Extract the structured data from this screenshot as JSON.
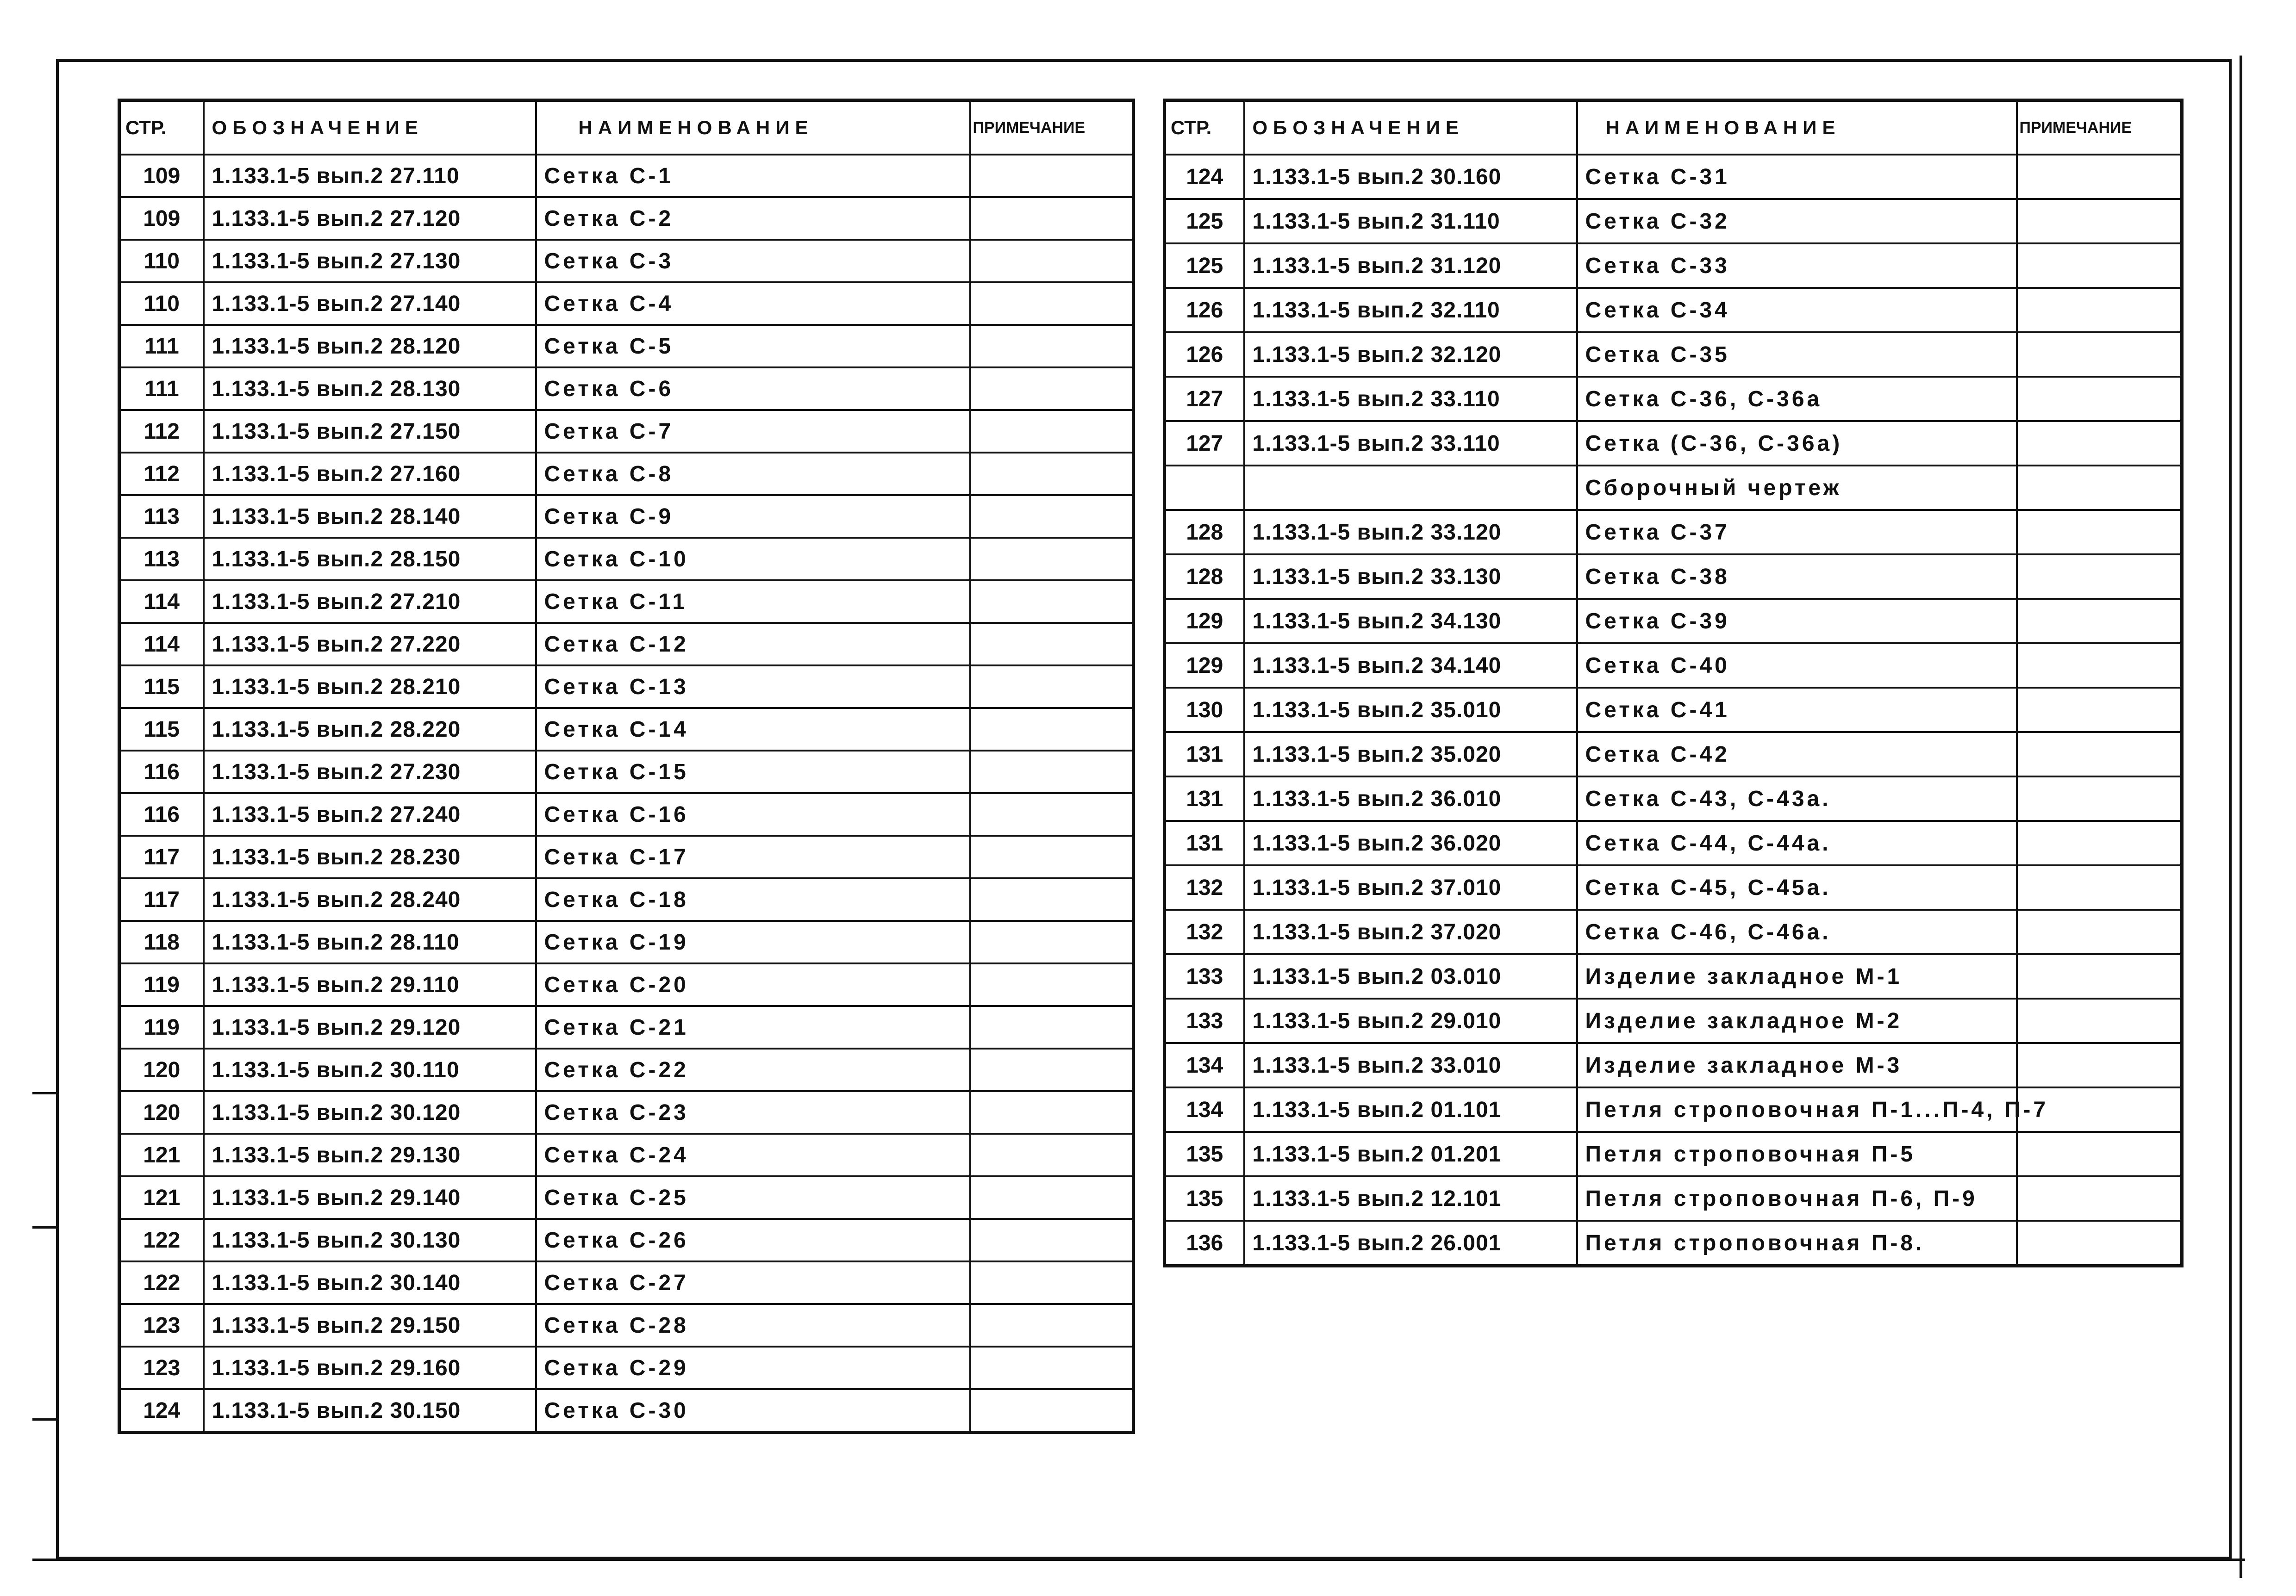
{
  "headers": {
    "page": "СТР.",
    "code": "ОБОЗНАЧЕНИЕ",
    "name": "НАИМЕНОВАНИЕ",
    "note": "ПРИМЕЧАНИЕ"
  },
  "left_rows": [
    {
      "page": "109",
      "code": "1.133.1-5  вып.2  27.110",
      "name": "Сетка С-1",
      "note": ""
    },
    {
      "page": "109",
      "code": "1.133.1-5  вып.2  27.120",
      "name": "Сетка С-2",
      "note": ""
    },
    {
      "page": "110",
      "code": "1.133.1-5  вып.2  27.130",
      "name": "Сетка С-3",
      "note": ""
    },
    {
      "page": "110",
      "code": "1.133.1-5  вып.2  27.140",
      "name": "Сетка С-4",
      "note": ""
    },
    {
      "page": "111",
      "code": "1.133.1-5  вып.2  28.120",
      "name": "Сетка С-5",
      "note": ""
    },
    {
      "page": "111",
      "code": "1.133.1-5  вып.2  28.130",
      "name": "Сетка С-6",
      "note": ""
    },
    {
      "page": "112",
      "code": "1.133.1-5  вып.2  27.150",
      "name": "Сетка С-7",
      "note": ""
    },
    {
      "page": "112",
      "code": "1.133.1-5  вып.2  27.160",
      "name": "Сетка С-8",
      "note": ""
    },
    {
      "page": "113",
      "code": "1.133.1-5  вып.2  28.140",
      "name": "Сетка С-9",
      "note": ""
    },
    {
      "page": "113",
      "code": "1.133.1-5  вып.2  28.150",
      "name": "Сетка С-10",
      "note": ""
    },
    {
      "page": "114",
      "code": "1.133.1-5  вып.2  27.210",
      "name": "Сетка С-11",
      "note": ""
    },
    {
      "page": "114",
      "code": "1.133.1-5  вып.2  27.220",
      "name": "Сетка С-12",
      "note": ""
    },
    {
      "page": "115",
      "code": "1.133.1-5  вып.2  28.210",
      "name": "Сетка С-13",
      "note": ""
    },
    {
      "page": "115",
      "code": "1.133.1-5  вып.2  28.220",
      "name": "Сетка С-14",
      "note": ""
    },
    {
      "page": "116",
      "code": "1.133.1-5  вып.2  27.230",
      "name": "Сетка С-15",
      "note": ""
    },
    {
      "page": "116",
      "code": "1.133.1-5  вып.2  27.240",
      "name": "Сетка С-16",
      "note": ""
    },
    {
      "page": "117",
      "code": "1.133.1-5  вып.2  28.230",
      "name": "Сетка С-17",
      "note": ""
    },
    {
      "page": "117",
      "code": "1.133.1-5  вып.2  28.240",
      "name": "Сетка С-18",
      "note": ""
    },
    {
      "page": "118",
      "code": "1.133.1-5  вып.2  28.110",
      "name": "Сетка С-19",
      "note": ""
    },
    {
      "page": "119",
      "code": "1.133.1-5  вып.2  29.110",
      "name": "Сетка С-20",
      "note": ""
    },
    {
      "page": "119",
      "code": "1.133.1-5  вып.2  29.120",
      "name": "Сетка С-21",
      "note": ""
    },
    {
      "page": "120",
      "code": "1.133.1-5  вып.2  30.110",
      "name": "Сетка С-22",
      "note": ""
    },
    {
      "page": "120",
      "code": "1.133.1-5  вып.2  30.120",
      "name": "Сетка С-23",
      "note": ""
    },
    {
      "page": "121",
      "code": "1.133.1-5  вып.2  29.130",
      "name": "Сетка С-24",
      "note": ""
    },
    {
      "page": "121",
      "code": "1.133.1-5  вып.2  29.140",
      "name": "Сетка С-25",
      "note": ""
    },
    {
      "page": "122",
      "code": "1.133.1-5  вып.2  30.130",
      "name": "Сетка С-26",
      "note": ""
    },
    {
      "page": "122",
      "code": "1.133.1-5  вып.2  30.140",
      "name": "Сетка С-27",
      "note": ""
    },
    {
      "page": "123",
      "code": "1.133.1-5  вып.2  29.150",
      "name": "Сетка С-28",
      "note": ""
    },
    {
      "page": "123",
      "code": "1.133.1-5  вып.2  29.160",
      "name": "Сетка С-29",
      "note": ""
    },
    {
      "page": "124",
      "code": "1.133.1-5  вып.2  30.150",
      "name": "Сетка С-30",
      "note": ""
    }
  ],
  "right_rows": [
    {
      "page": "124",
      "code": "1.133.1-5  вып.2  30.160",
      "name": "Сетка С-31",
      "note": ""
    },
    {
      "page": "125",
      "code": "1.133.1-5  вып.2  31.110",
      "name": "Сетка С-32",
      "note": ""
    },
    {
      "page": "125",
      "code": "1.133.1-5  вып.2  31.120",
      "name": "Сетка С-33",
      "note": ""
    },
    {
      "page": "126",
      "code": "1.133.1-5  вып.2  32.110",
      "name": "Сетка С-34",
      "note": ""
    },
    {
      "page": "126",
      "code": "1.133.1-5  вып.2  32.120",
      "name": "Сетка С-35",
      "note": ""
    },
    {
      "page": "127",
      "code": "1.133.1-5  вып.2  33.110",
      "name": "Сетка С-36, С-36а",
      "note": ""
    },
    {
      "page": "127",
      "code": "1.133.1-5  вып.2  33.110",
      "name": "Сетка (С-36, С-36а)",
      "note": ""
    },
    {
      "page": "",
      "code": "",
      "name": "Сборочный чертеж",
      "note": ""
    },
    {
      "page": "128",
      "code": "1.133.1-5  вып.2  33.120",
      "name": "Сетка С-37",
      "note": ""
    },
    {
      "page": "128",
      "code": "1.133.1-5  вып.2  33.130",
      "name": "Сетка С-38",
      "note": ""
    },
    {
      "page": "129",
      "code": "1.133.1-5  вып.2  34.130",
      "name": "Сетка С-39",
      "note": ""
    },
    {
      "page": "129",
      "code": "1.133.1-5  вып.2  34.140",
      "name": "Сетка С-40",
      "note": ""
    },
    {
      "page": "130",
      "code": "1.133.1-5  вып.2  35.010",
      "name": "Сетка С-41",
      "note": ""
    },
    {
      "page": "131",
      "code": "1.133.1-5  вып.2  35.020",
      "name": "Сетка С-42",
      "note": ""
    },
    {
      "page": "131",
      "code": "1.133.1-5  вып.2  36.010",
      "name": "Сетка С-43, С-43а.",
      "note": ""
    },
    {
      "page": "131",
      "code": "1.133.1-5  вып.2  36.020",
      "name": "Сетка С-44, С-44а.",
      "note": ""
    },
    {
      "page": "132",
      "code": "1.133.1-5  вып.2  37.010",
      "name": "Сетка С-45, С-45а.",
      "note": ""
    },
    {
      "page": "132",
      "code": "1.133.1-5  вып.2  37.020",
      "name": "Сетка С-46, С-46а.",
      "note": ""
    },
    {
      "page": "133",
      "code": "1.133.1-5  вып.2  03.010",
      "name": "Изделие закладное М-1",
      "note": ""
    },
    {
      "page": "133",
      "code": "1.133.1-5  вып.2  29.010",
      "name": "Изделие закладное М-2",
      "note": ""
    },
    {
      "page": "134",
      "code": "1.133.1-5  вып.2  33.010",
      "name": "Изделие закладное М-3",
      "note": ""
    },
    {
      "page": "134",
      "code": "1.133.1-5  вып.2  01.101",
      "name": "Петля строповочная П-1...П-4, П-7",
      "note": ""
    },
    {
      "page": "135",
      "code": "1.133.1-5  вып.2  01.201",
      "name": "Петля строповочная П-5",
      "note": ""
    },
    {
      "page": "135",
      "code": "1.133.1-5  вып.2  12.101",
      "name": "Петля строповочная П-6, П-9",
      "note": ""
    },
    {
      "page": "136",
      "code": "1.133.1-5  вып.2  26.001",
      "name": "Петля строповочная П-8.",
      "note": ""
    }
  ]
}
